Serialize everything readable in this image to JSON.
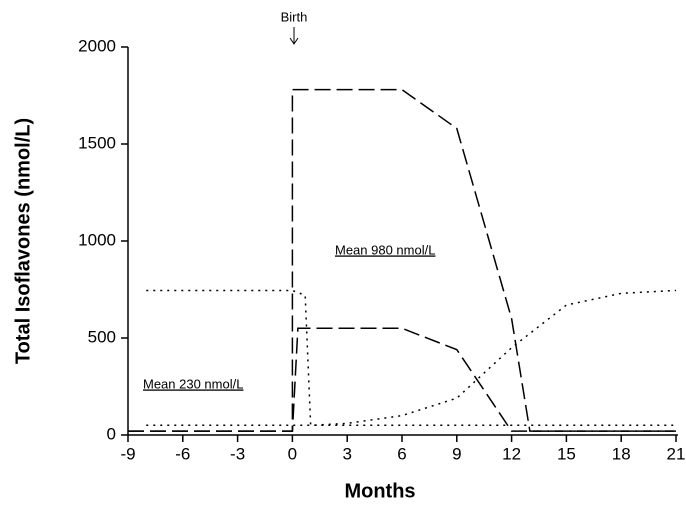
{
  "chart_data": {
    "type": "line",
    "xlabel": "Months",
    "ylabel": "Total Isoflavones (nmol/L)",
    "annotations": [
      "Birth",
      "Mean 980 nmol/L",
      "Mean 230 nmol/L"
    ],
    "xlim": [
      -9,
      21
    ],
    "xticks": [
      -9,
      -6,
      -3,
      0,
      3,
      6,
      9,
      12,
      15,
      18,
      21
    ],
    "ylim": [
      0,
      2000
    ],
    "yticks": [
      0,
      500,
      1000,
      1500,
      2000
    ],
    "series": [
      {
        "color": "#000000",
        "style": "dashed",
        "x": [
          -9,
          0,
          0,
          6,
          9,
          12,
          13,
          21
        ],
        "values": [
          20,
          20,
          1780,
          1780,
          1580,
          600,
          20,
          20
        ]
      },
      {
        "color": "#000000",
        "style": "dashed",
        "x": [
          -9,
          0,
          0.3,
          6,
          9,
          12,
          21
        ],
        "values": [
          20,
          20,
          550,
          550,
          440,
          20,
          20
        ]
      },
      {
        "color": "#000000",
        "style": "dotted",
        "x": [
          -8,
          0,
          0.7,
          1,
          3,
          6,
          9,
          12,
          15,
          18,
          21
        ],
        "values": [
          745,
          745,
          720,
          50,
          60,
          100,
          190,
          450,
          670,
          730,
          745
        ]
      },
      {
        "color": "#000000",
        "style": "dotted",
        "x": [
          -8,
          21
        ],
        "values": [
          50,
          50
        ]
      }
    ]
  }
}
